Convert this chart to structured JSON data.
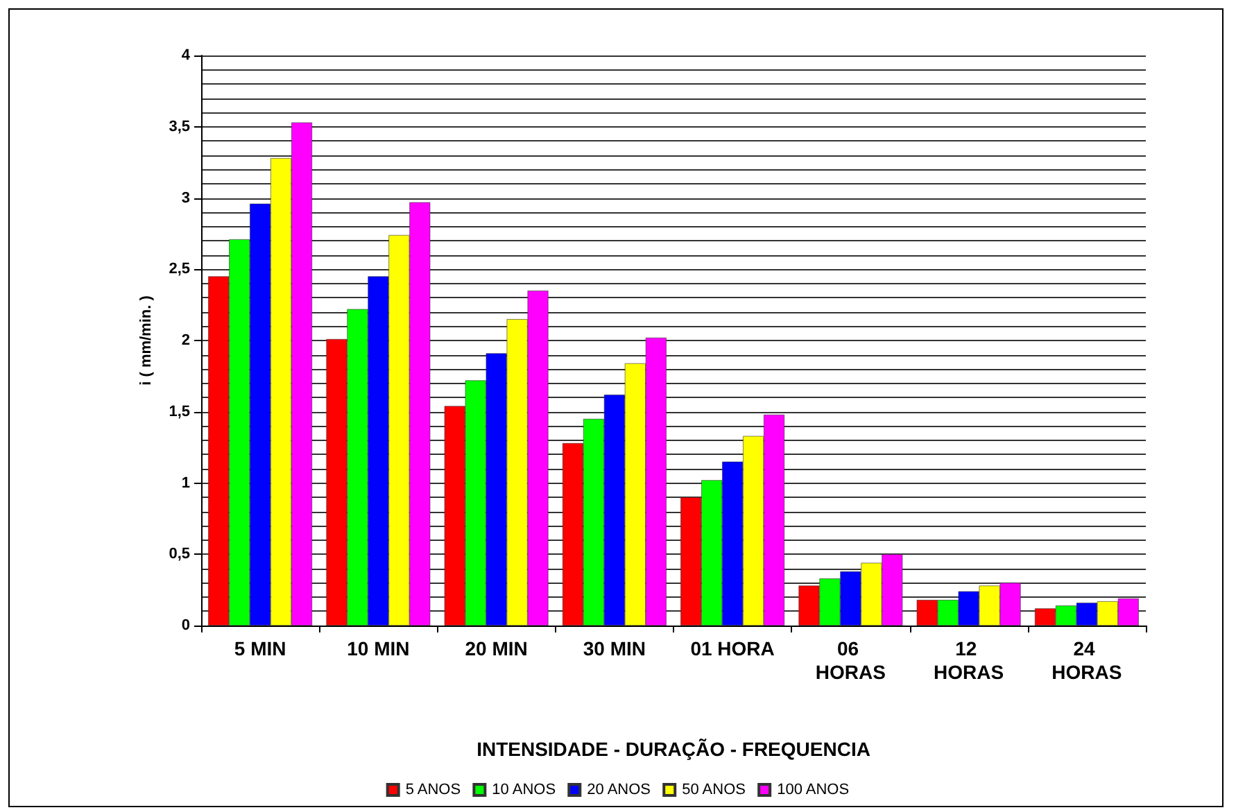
{
  "chart_data": {
    "type": "bar",
    "xlabel": "INTENSIDADE - DURAÇÃO - FREQUENCIA",
    "ylabel": "i ( mm/min. )",
    "categories": [
      "5 MIN",
      "10 MIN",
      "20 MIN",
      "30 MIN",
      "01 HORA",
      "06 HORAS",
      "12 HORAS",
      "24 HORAS"
    ],
    "series": [
      {
        "name": "5 ANOS",
        "color": "#ff0000",
        "values": [
          2.45,
          2.01,
          1.54,
          1.28,
          0.9,
          0.28,
          0.18,
          0.12
        ]
      },
      {
        "name": "10 ANOS",
        "color": "#00ff00",
        "values": [
          2.71,
          2.22,
          1.72,
          1.45,
          1.02,
          0.33,
          0.18,
          0.14
        ]
      },
      {
        "name": "20 ANOS",
        "color": "#0000ff",
        "values": [
          2.96,
          2.45,
          1.91,
          1.62,
          1.15,
          0.38,
          0.24,
          0.16
        ]
      },
      {
        "name": "50 ANOS",
        "color": "#ffff00",
        "values": [
          3.28,
          2.74,
          2.15,
          1.84,
          1.33,
          0.44,
          0.28,
          0.17
        ]
      },
      {
        "name": "100 ANOS",
        "color": "#ff00ff",
        "values": [
          3.53,
          2.97,
          2.35,
          2.02,
          1.48,
          0.5,
          0.3,
          0.19
        ]
      }
    ],
    "ylim": [
      0,
      4
    ],
    "yticks": [
      0,
      {
        "value": 0.1,
        "label": null
      },
      {
        "value": 0.2,
        "label": null
      },
      {
        "value": 0.3,
        "label": null
      },
      {
        "value": 0.4,
        "label": null
      },
      {
        "value": 0.5,
        "label": "0,5"
      },
      {
        "value": 0.6,
        "label": null
      },
      {
        "value": 0.7,
        "label": null
      },
      {
        "value": 0.8,
        "label": null
      },
      {
        "value": 0.9,
        "label": null
      },
      1,
      {
        "value": 1.1,
        "label": null
      },
      {
        "value": 1.2,
        "label": null
      },
      {
        "value": 1.3,
        "label": null
      },
      {
        "value": 1.4,
        "label": null
      },
      {
        "value": 1.5,
        "label": "1,5"
      },
      {
        "value": 1.6,
        "label": null
      },
      {
        "value": 1.7,
        "label": null
      },
      {
        "value": 1.8,
        "label": null
      },
      {
        "value": 1.9,
        "label": null
      },
      2,
      {
        "value": 2.1,
        "label": null
      },
      {
        "value": 2.2,
        "label": null
      },
      {
        "value": 2.3,
        "label": null
      },
      {
        "value": 2.4,
        "label": null
      },
      {
        "value": 2.5,
        "label": "2,5"
      },
      {
        "value": 2.6,
        "label": null
      },
      {
        "value": 2.7,
        "label": null
      },
      {
        "value": 2.8,
        "label": null
      },
      {
        "value": 2.9,
        "label": null
      },
      3,
      {
        "value": 3.1,
        "label": null
      },
      {
        "value": 3.2,
        "label": null
      },
      {
        "value": 3.3,
        "label": null
      },
      {
        "value": 3.4,
        "label": null
      },
      {
        "value": 3.5,
        "label": "3,5"
      },
      {
        "value": 3.6,
        "label": null
      },
      {
        "value": 3.7,
        "label": null
      },
      {
        "value": 3.8,
        "label": null
      },
      {
        "value": 3.9,
        "label": null
      },
      4
    ],
    "grid": "y",
    "legend": "bottom"
  }
}
